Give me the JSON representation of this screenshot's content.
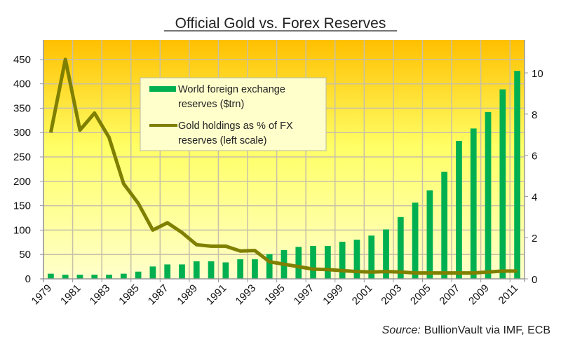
{
  "chart_data": {
    "type": "bar",
    "title": "Official Gold vs. Forex Reserves",
    "source_label": "Source:",
    "source_text": "BullionVault via IMF, ECB",
    "categories": [
      "1979",
      "1980",
      "1981",
      "1982",
      "1983",
      "1984",
      "1985",
      "1986",
      "1987",
      "1988",
      "1989",
      "1990",
      "1991",
      "1992",
      "1993",
      "1994",
      "1995",
      "1996",
      "1997",
      "1998",
      "1999",
      "2000",
      "2001",
      "2002",
      "2003",
      "2004",
      "2005",
      "2006",
      "2007",
      "2008",
      "2009",
      "2010",
      "2011"
    ],
    "x_tick_labels": [
      "1979",
      "1981",
      "1983",
      "1985",
      "1987",
      "1989",
      "1991",
      "1993",
      "1995",
      "1997",
      "1999",
      "2001",
      "2003",
      "2005",
      "2007",
      "2009",
      "2011"
    ],
    "left_axis": {
      "ylim": [
        0,
        490
      ],
      "ticks": [
        0,
        50,
        100,
        150,
        200,
        250,
        300,
        350,
        400,
        450
      ]
    },
    "right_axis": {
      "ylim": [
        0,
        11.6
      ],
      "ticks": [
        0,
        2,
        4,
        6,
        8,
        10
      ]
    },
    "grid": true,
    "legend_position": "top-center",
    "series": [
      {
        "name": "World foreign exchange reserves ($trn)",
        "type": "bar",
        "axis": "right",
        "color": "#00b050",
        "values": [
          0.25,
          0.2,
          0.2,
          0.2,
          0.2,
          0.25,
          0.35,
          0.6,
          0.7,
          0.7,
          0.85,
          0.85,
          0.8,
          0.95,
          0.95,
          1.2,
          1.4,
          1.55,
          1.6,
          1.6,
          1.8,
          1.9,
          2.1,
          2.4,
          3.0,
          3.7,
          4.3,
          5.2,
          6.7,
          7.3,
          8.1,
          9.2,
          10.1
        ]
      },
      {
        "name": "Gold holdings as % of FX reserves (left scale)",
        "type": "line",
        "axis": "left",
        "color": "#7f7f00",
        "values": [
          300,
          450,
          305,
          340,
          290,
          195,
          155,
          100,
          115,
          95,
          70,
          67,
          67,
          57,
          58,
          35,
          30,
          25,
          20,
          19,
          17,
          15,
          14,
          15,
          14,
          12,
          12,
          12,
          12,
          12,
          14,
          16,
          16
        ]
      }
    ],
    "legend": [
      {
        "line1": "World foreign exchange",
        "line2": "reserves ($trn)"
      },
      {
        "line1": "Gold holdings as % of FX",
        "line2": "reserves (left scale)"
      }
    ],
    "colors": {
      "bg_top": "#ffc000",
      "bg_mid": "#ffff66",
      "bg_bottom": "#ffffcc",
      "grid": "#c8c0a8",
      "legend_bg": "#ffffcc"
    }
  }
}
